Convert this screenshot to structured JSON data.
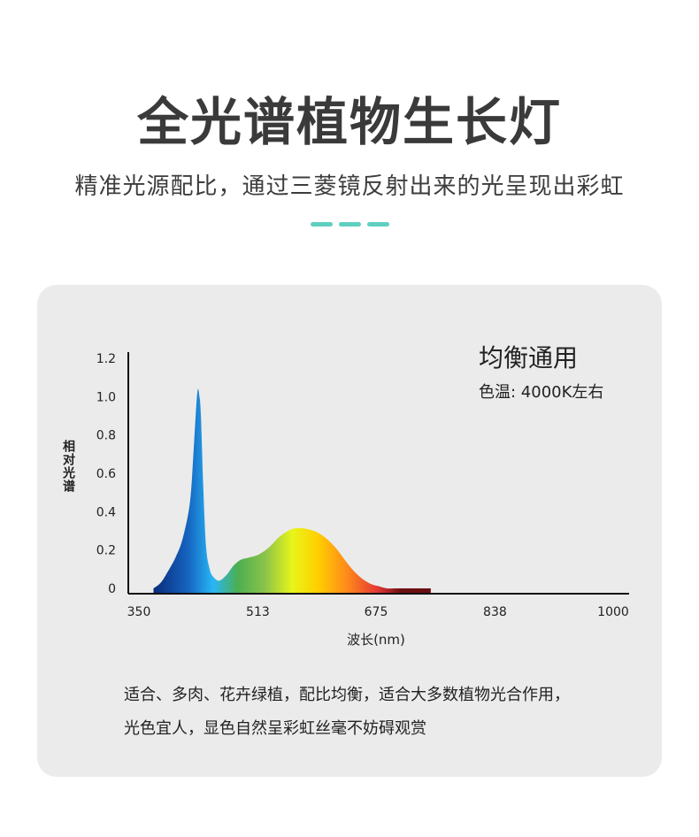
{
  "header": {
    "title": "全光谱植物生长灯",
    "subtitle": "精准光源配比，通过三菱镜反射出来的光呈现出彩虹",
    "dash_color": "#5fcfc0"
  },
  "panel": {
    "mode_title": "均衡通用",
    "mode_subtitle": "色温: 4000K左右",
    "description": [
      "适合、多肉、花卉绿植，配比均衡，适合大多数植物光合作用，",
      "光色宜人，显色自然呈彩虹丝毫不妨碍观赏"
    ]
  },
  "chart_data": {
    "type": "area",
    "xlabel": "波长(nm)",
    "ylabel": "相对光谱",
    "x_ticks": [
      "350",
      "513",
      "675",
      "838",
      "1000"
    ],
    "y_ticks": [
      "0",
      "0.2",
      "0.4",
      "0.6",
      "0.8",
      "1.0",
      "1.2"
    ],
    "xlim": [
      350,
      1000
    ],
    "ylim": [
      0,
      1.2
    ],
    "series": [
      {
        "x": [
          370,
          380,
          390,
          400,
          410,
          420,
          425,
          430,
          433,
          435,
          438,
          442,
          447,
          452,
          460,
          470,
          480,
          490,
          500,
          510,
          520,
          530,
          540,
          550,
          560,
          570,
          580,
          590,
          600,
          610,
          620,
          630,
          640,
          650,
          660,
          670,
          680,
          690,
          700,
          710,
          720,
          730,
          750
        ],
        "y": [
          0.0,
          0.03,
          0.09,
          0.16,
          0.26,
          0.45,
          0.72,
          1.02,
          1.0,
          0.9,
          0.55,
          0.22,
          0.1,
          0.06,
          0.04,
          0.07,
          0.12,
          0.15,
          0.16,
          0.17,
          0.19,
          0.22,
          0.26,
          0.29,
          0.31,
          0.315,
          0.31,
          0.3,
          0.28,
          0.25,
          0.21,
          0.16,
          0.11,
          0.07,
          0.04,
          0.02,
          0.01,
          0.0,
          0.0,
          0.0,
          0.0,
          0.0,
          0.0
        ]
      }
    ],
    "gradient_colors": [
      "#0a2a7a",
      "#1565c0",
      "#29b6f6",
      "#4caf50",
      "#8bc34a",
      "#e8f51a",
      "#ffd000",
      "#ff8a1a",
      "#e53935",
      "#6b0f12"
    ],
    "grid": false
  }
}
